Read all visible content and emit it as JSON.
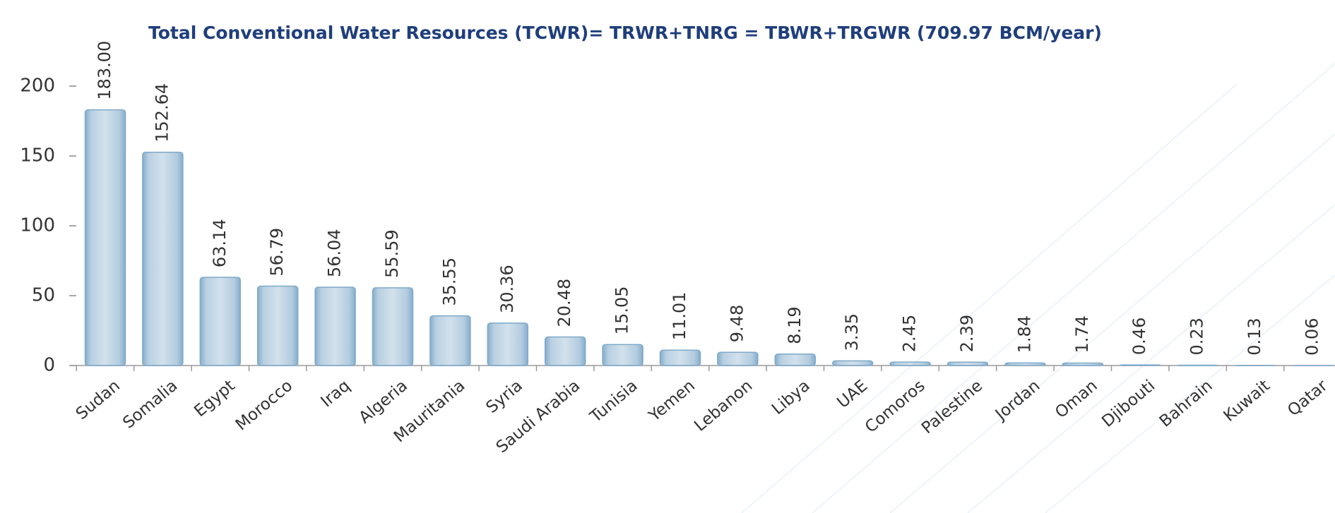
{
  "chart_data": {
    "type": "bar",
    "title": "Total Conventional Water Resources (TCWR)= TRWR+TNRG  = TBWR+TRGWR  (709.97 BCM/year)",
    "categories": [
      "Sudan",
      "Somalia",
      "Egypt",
      "Morocco",
      "Iraq",
      "Algeria",
      "Mauritania",
      "Syria",
      "Saudi Arabia",
      "Tunisia",
      "Yemen",
      "Lebanon",
      "Libya",
      "UAE",
      "Comoros",
      "Palestine",
      "Jordan",
      "Oman",
      "Djibouti",
      "Bahrain",
      "Kuwait",
      "Qatar"
    ],
    "values": [
      183.0,
      152.64,
      63.14,
      56.79,
      56.04,
      55.59,
      35.55,
      30.36,
      20.48,
      15.05,
      11.01,
      9.48,
      8.19,
      3.35,
      2.45,
      2.39,
      1.84,
      1.74,
      0.46,
      0.23,
      0.13,
      0.06
    ],
    "value_labels": [
      "183.00",
      "152.64",
      "63.14",
      "56.79",
      "56.04",
      "55.59",
      "35.55",
      "30.36",
      "20.48",
      "15.05",
      "11.01",
      "9.48",
      "8.19",
      "3.35",
      "2.45",
      "2.39",
      "1.84",
      "1.74",
      "0.46",
      "0.23",
      "0.13",
      "0.06"
    ],
    "color": "#7fa9c9",
    "ylim": [
      0,
      200
    ],
    "yticks": [
      0,
      50,
      100,
      150,
      200
    ]
  }
}
